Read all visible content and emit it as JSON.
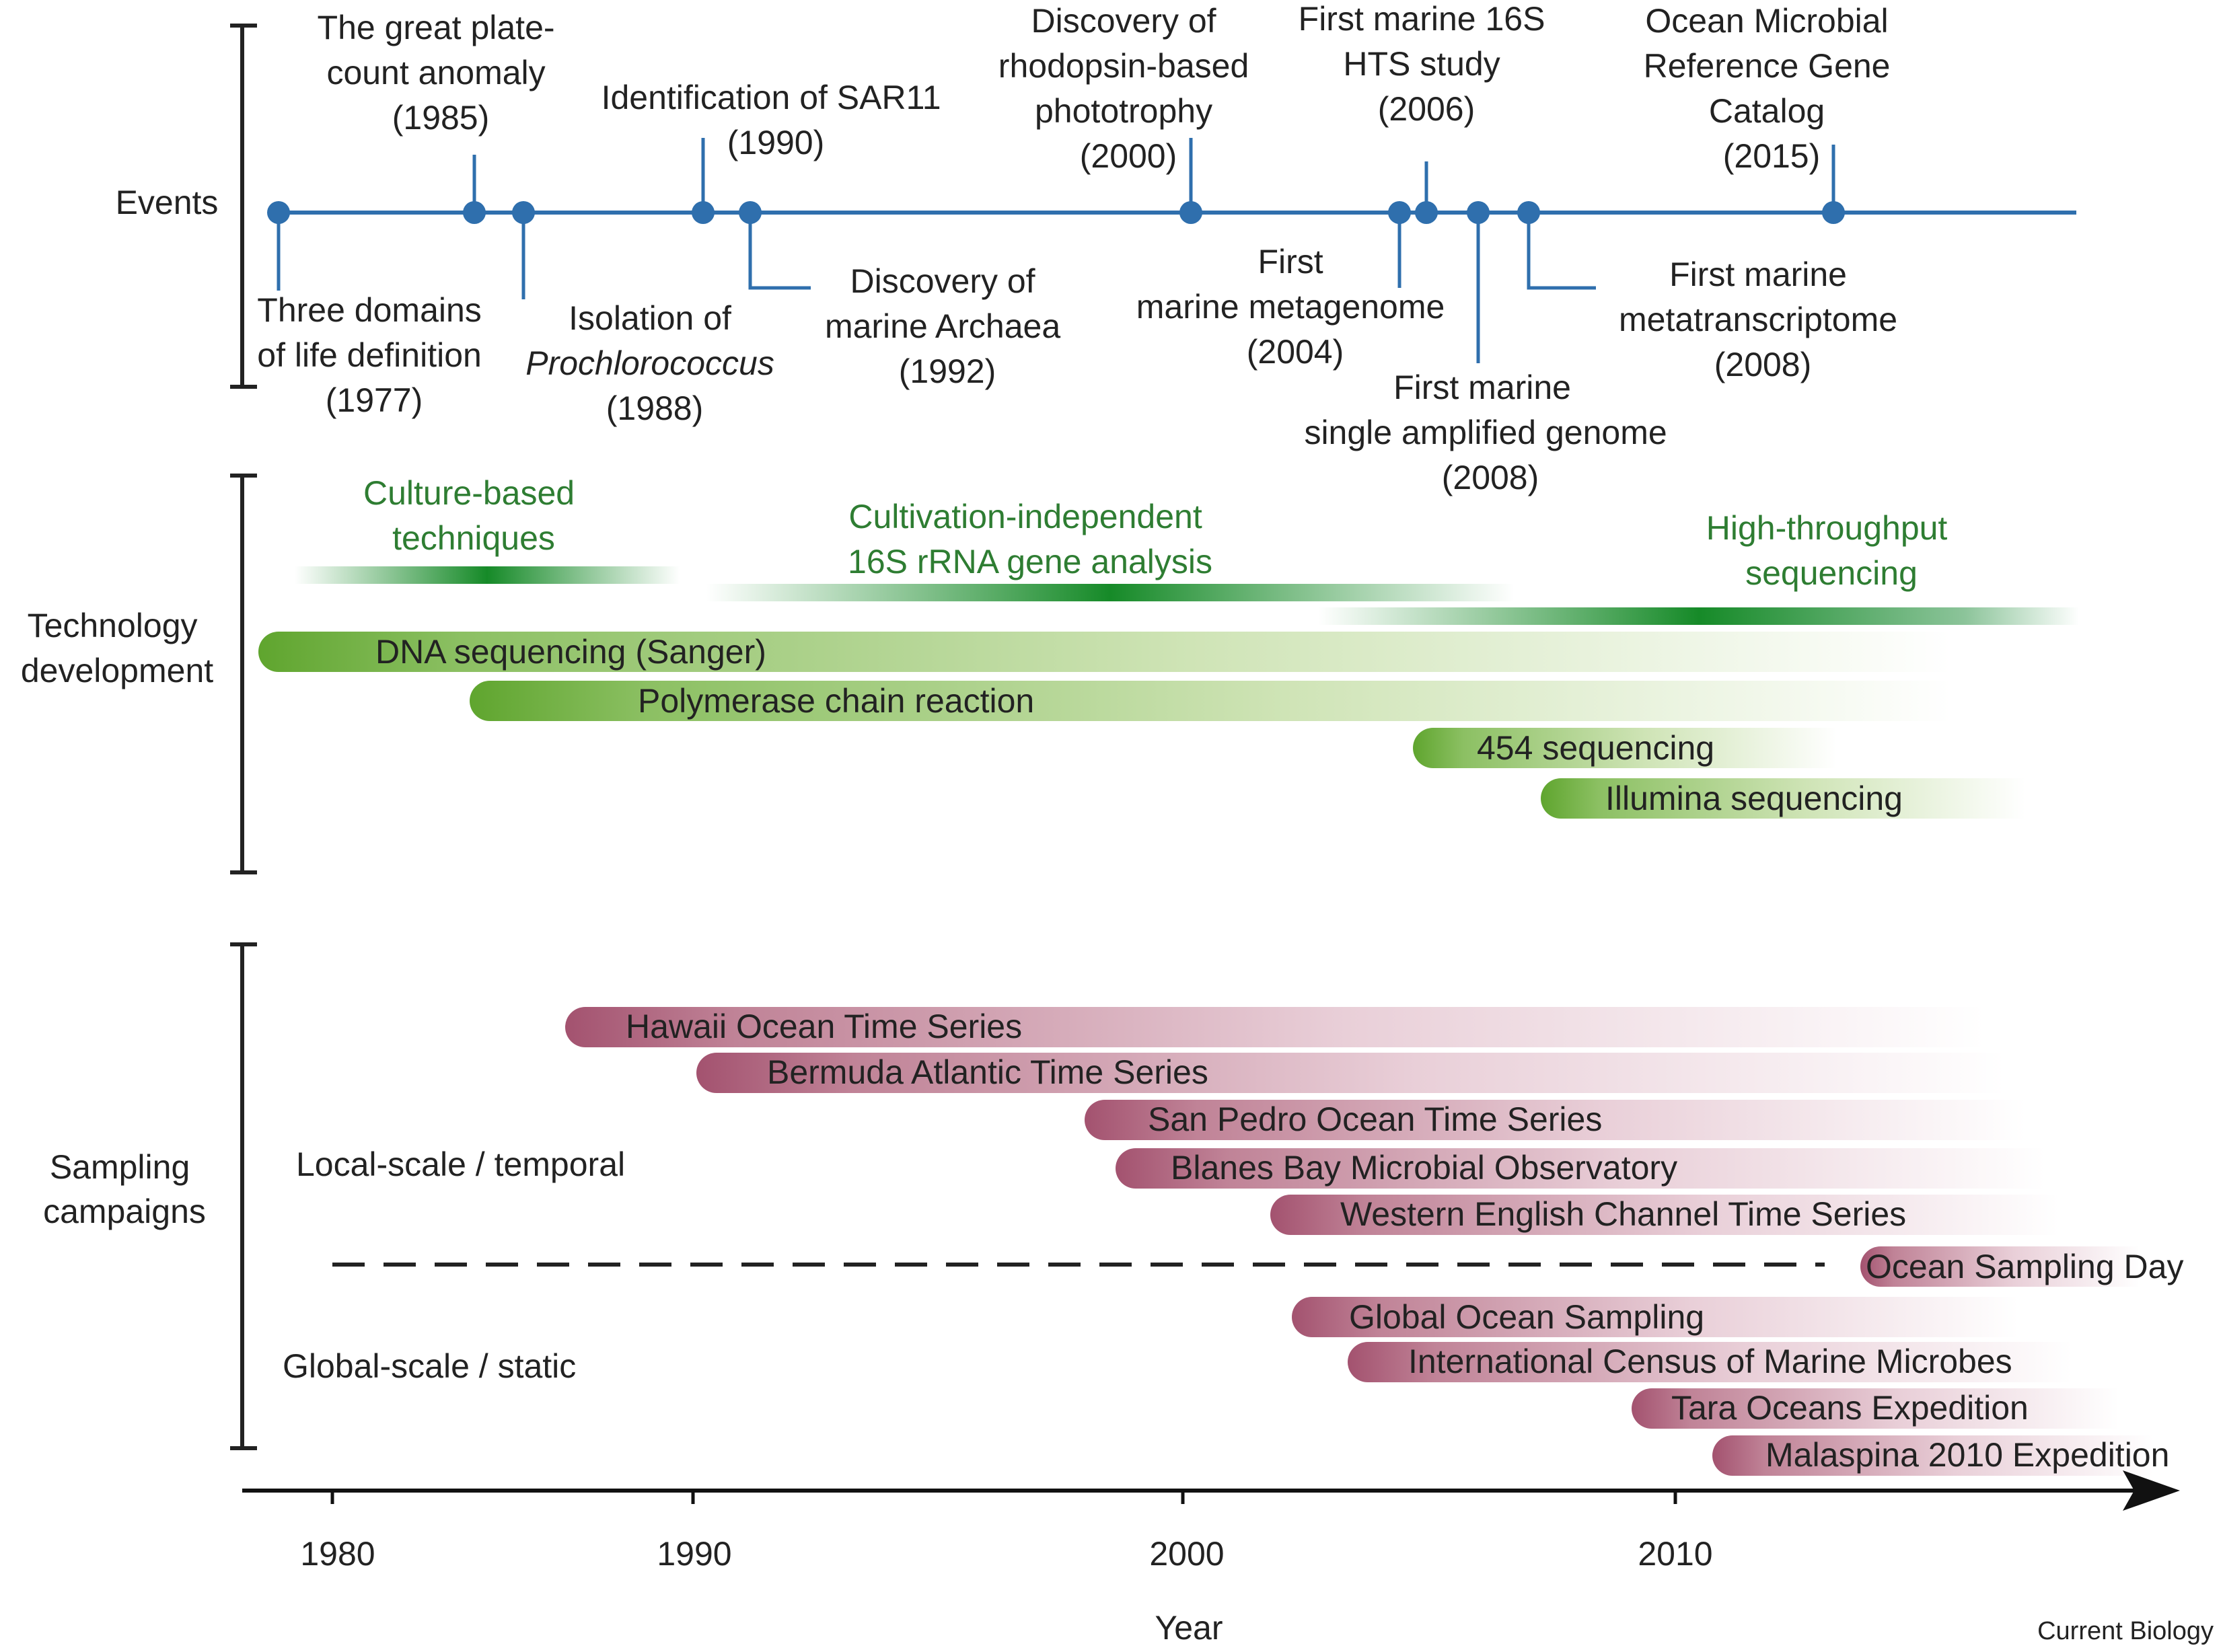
{
  "sections": {
    "events": "Events",
    "technology": [
      "Technology",
      "development"
    ],
    "sampling": [
      "Sampling",
      "campaigns"
    ]
  },
  "scales": {
    "local": "Local-scale / temporal",
    "global": "Global-scale / static"
  },
  "axis": {
    "title": "Year",
    "ticks": [
      1980,
      1990,
      2000,
      2010
    ]
  },
  "credit": "Current Biology",
  "colors": {
    "timeline": "#2f6fad",
    "text": "#222222",
    "tech_label": "#2e7d32",
    "tech_band": "#1f8a2a",
    "tech_bar": "#6fae3a",
    "sampling_bar": "#a65571"
  },
  "events": [
    {
      "year": 1977,
      "lines": [
        "Three domains",
        "of life definition",
        "(1977)"
      ]
    },
    {
      "year": 1985,
      "lines": [
        "The great plate-",
        "count anomaly",
        "(1985)"
      ]
    },
    {
      "year": 1988,
      "lines": [
        "Isolation of",
        "Prochlorococcus",
        "(1988)"
      ]
    },
    {
      "year": 1990,
      "lines": [
        "Identification of SAR11",
        "(1990)"
      ]
    },
    {
      "year": 1992,
      "lines": [
        "Discovery of",
        "marine Archaea",
        "(1992)"
      ]
    },
    {
      "year": 2000,
      "lines": [
        "Discovery of",
        "rhodopsin-based",
        "phototrophy",
        "(2000)"
      ]
    },
    {
      "year": 2004,
      "lines": [
        "First",
        "marine metagenome",
        "(2004)"
      ]
    },
    {
      "year": 2006,
      "lines": [
        "First marine 16S",
        "HTS study",
        "(2006)"
      ]
    },
    {
      "year": 2008,
      "lines": [
        "First marine",
        "single amplified genome",
        "(2008)"
      ]
    },
    {
      "year": 2008,
      "lines": [
        "First marine",
        "metatranscriptome",
        "(2008)"
      ]
    },
    {
      "year": 2015,
      "lines": [
        "Ocean Microbial",
        "Reference Gene",
        "Catalog",
        "(2015)"
      ]
    }
  ],
  "tech_eras": [
    {
      "lines": [
        "Culture-based",
        "techniques"
      ]
    },
    {
      "lines": [
        "Cultivation-independent",
        "16S rRNA gene analysis"
      ]
    },
    {
      "lines": [
        "High-throughput",
        "sequencing"
      ]
    }
  ],
  "tech_bars": [
    {
      "label": "DNA sequencing (Sanger)",
      "start": 1977
    },
    {
      "label": "Polymerase chain reaction",
      "start": 1983
    },
    {
      "label": "454 sequencing",
      "start": 2005
    },
    {
      "label": "Illumina sequencing",
      "start": 2007
    }
  ],
  "local_campaigns": [
    {
      "label": "Hawaii Ocean Time Series",
      "start": 1988
    },
    {
      "label": "Bermuda Atlantic Time Series",
      "start": 1988
    },
    {
      "label": "San Pedro Ocean Time Series",
      "start": 2000
    },
    {
      "label": "Blanes Bay Microbial Observatory",
      "start": 2001
    },
    {
      "label": "Western English Channel Time Series",
      "start": 2003
    },
    {
      "label": "Ocean Sampling Day",
      "start": 2014
    }
  ],
  "global_campaigns": [
    {
      "label": "Global Ocean Sampling",
      "start": 2003
    },
    {
      "label": "International Census of Marine Microbes",
      "start": 2004
    },
    {
      "label": "Tara Oceans Expedition",
      "start": 2009
    },
    {
      "label": "Malaspina 2010 Expedition",
      "start": 2010
    }
  ]
}
